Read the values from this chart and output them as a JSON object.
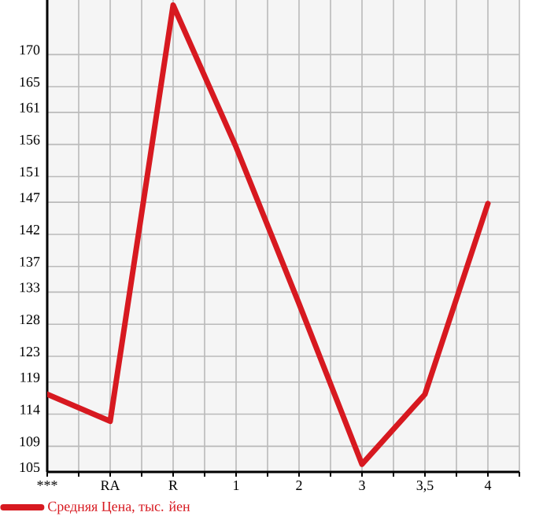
{
  "chart_data": {
    "type": "line",
    "categories": [
      "***",
      "RA",
      "R",
      "1",
      "2",
      "3",
      "3,5",
      "4"
    ],
    "series": [
      {
        "name": "Средняя Цена, тыс. йен",
        "color": "#d71920",
        "values": [
          117.1,
          112.9,
          177.7,
          155.6,
          131.2,
          106.2,
          117.1,
          146.8
        ]
      }
    ],
    "ylim": [
      105,
      178.5
    ],
    "yticks": [
      105,
      109,
      114,
      119,
      123,
      128,
      133,
      137,
      142,
      147,
      151,
      156,
      161,
      165,
      170
    ],
    "grid": true,
    "legend": "bottom left",
    "marker": "none",
    "line_style": "solid"
  }
}
